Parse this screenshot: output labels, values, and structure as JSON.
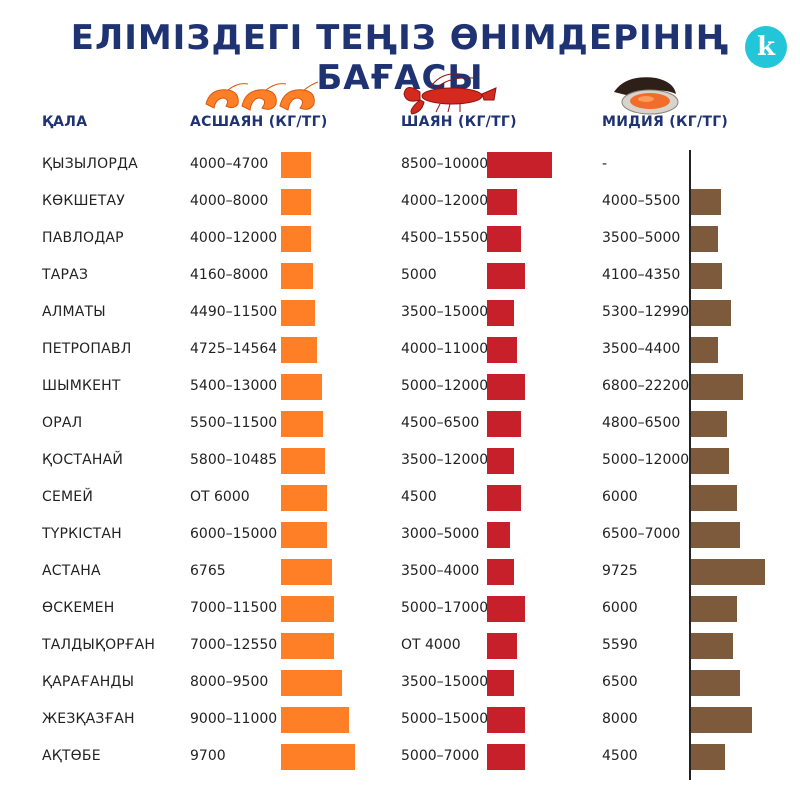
{
  "title": "ЕЛІМІЗДЕГІ ТЕҢІЗ ӨНІМДЕРІНІҢ БАҒАСЫ",
  "logo_letter": "k",
  "colors": {
    "shrimp": "#ff7f27",
    "lobster": "#c8202a",
    "mussel": "#7d5a3c",
    "title": "#1f3373",
    "logo": "#22c6d8"
  },
  "icons": {
    "shrimp": "shrimp-icon",
    "lobster": "lobster-icon",
    "mussel": "mussel-icon"
  },
  "headers": {
    "city": "ҚАЛА",
    "shrimp": "АСШАЯН (КГ/ТГ)",
    "lobster": "ШАЯН (КГ/ТГ)",
    "mussel": "МИДИЯ (КГ/ТГ)"
  },
  "chart_data": {
    "type": "bar",
    "title": "ЕЛІМІЗДЕГІ ТЕҢІЗ ӨНІМДЕРІНІҢ БАҒАСЫ",
    "categories": [
      "ҚЫЗЫЛОРДА",
      "КӨКШЕТАУ",
      "ПАВЛОДАР",
      "ТАРАЗ",
      "АЛМАТЫ",
      "ПЕТРОПАВЛ",
      "ШЫМКЕНТ",
      "ОРАЛ",
      "ҚОСТАНАЙ",
      "СЕМЕЙ",
      "ТҮРКІСТАН",
      "АСТАНА",
      "ӨСКЕМЕН",
      "ТАЛДЫҚОРҒАН",
      "ҚАРАҒАНДЫ",
      "ЖЕЗҚАЗҒАН",
      "АҚТӨБЕ"
    ],
    "series": [
      {
        "name": "АСШАЯН (КГ/ТГ)",
        "labels": [
          "4000–4700",
          "4000–8000",
          "4000–12000",
          "4160–8000",
          "4490–11500",
          "4725–14564",
          "5400–13000",
          "5500–11500",
          "5800–10485",
          "ОТ 6000",
          "6000–15000",
          "6765",
          "7000–11500",
          "7000–12550",
          "8000–9500",
          "9000–11000",
          "9700"
        ],
        "values": [
          4000,
          4000,
          4000,
          4160,
          4490,
          4725,
          5400,
          5500,
          5800,
          6000,
          6000,
          6765,
          7000,
          7000,
          8000,
          9000,
          9700
        ]
      },
      {
        "name": "ШАЯН (КГ/ТГ)",
        "labels": [
          "8500–10000",
          "4000–12000",
          "4500–15500",
          "5000",
          "3500–15000",
          "4000–11000",
          "5000–12000",
          "4500–6500",
          "3500–12000",
          "4500",
          "3000–5000",
          "3500–4000",
          "5000–17000",
          "ОТ 4000",
          "3500–15000",
          "5000–15000",
          "5000–7000"
        ],
        "values": [
          8500,
          4000,
          4500,
          5000,
          3500,
          4000,
          5000,
          4500,
          3500,
          4500,
          3000,
          3500,
          5000,
          4000,
          3500,
          5000,
          5000
        ]
      },
      {
        "name": "МИДИЯ (КГ/ТГ)",
        "labels": [
          "-",
          "4000–5500",
          "3500–5000",
          "4100–4350",
          "5300–12990",
          "3500–4400",
          "6800–22200",
          "4800–6500",
          "5000–12000",
          "6000",
          "6500–7000",
          "9725",
          "6000",
          "5590",
          "6500",
          "8000",
          "4500"
        ],
        "values": [
          0,
          4000,
          3500,
          4100,
          5300,
          3500,
          6800,
          4800,
          5000,
          6000,
          6500,
          9725,
          6000,
          5590,
          6500,
          8000,
          4500
        ]
      }
    ]
  }
}
